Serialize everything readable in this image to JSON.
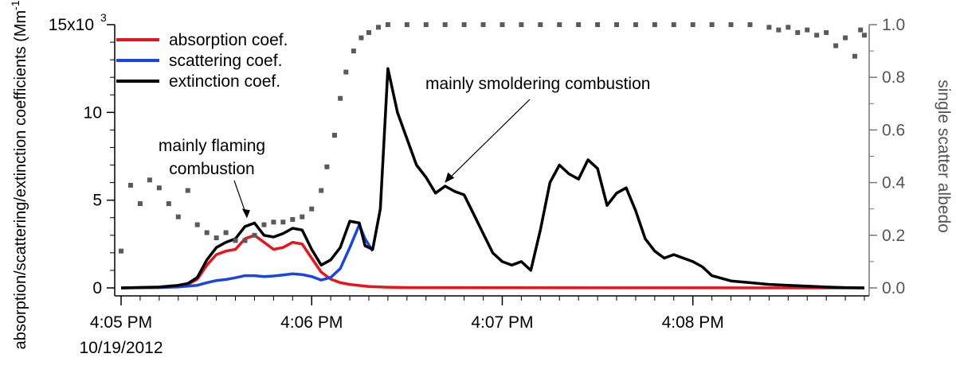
{
  "chart_data": {
    "type": "line",
    "title": "",
    "ylabel": "absorption/scattering/extinction coefficients (Mm",
    "ylabel_sup": "-1",
    "ylabel_end": ")",
    "y2label": "single scatter albedo",
    "x_ticks": [
      {
        "t": 0,
        "label": "4:05 PM"
      },
      {
        "t": 1,
        "label": "4:06 PM"
      },
      {
        "t": 2,
        "label": "4:07 PM"
      },
      {
        "t": 3,
        "label": "4:08 PM"
      }
    ],
    "x_date_label": "10/19/2012",
    "xlim": [
      0,
      3.9
    ],
    "ylim": [
      0,
      15000
    ],
    "y_ticks": [
      {
        "v": 0,
        "label": "0"
      },
      {
        "v": 5000,
        "label": "5"
      },
      {
        "v": 10000,
        "label": "10"
      },
      {
        "v": 15000,
        "label": "15x10"
      }
    ],
    "y_top_sup": "3",
    "y2lim": [
      0,
      1
    ],
    "y2_ticks": [
      {
        "v": 0,
        "label": "0.0"
      },
      {
        "v": 0.2,
        "label": "0.2"
      },
      {
        "v": 0.4,
        "label": "0.4"
      },
      {
        "v": 0.6,
        "label": "0.6"
      },
      {
        "v": 0.8,
        "label": "0.8"
      },
      {
        "v": 1.0,
        "label": "1.0"
      }
    ],
    "legend_position": "top-left",
    "series": [
      {
        "name": "absorption coef.",
        "color": "#e8141c",
        "axis": "left",
        "points": [
          [
            0,
            0
          ],
          [
            0.2,
            30
          ],
          [
            0.3,
            100
          ],
          [
            0.35,
            200
          ],
          [
            0.4,
            500
          ],
          [
            0.45,
            1300
          ],
          [
            0.5,
            1900
          ],
          [
            0.55,
            2100
          ],
          [
            0.6,
            2200
          ],
          [
            0.65,
            2800
          ],
          [
            0.7,
            3000
          ],
          [
            0.75,
            2600
          ],
          [
            0.8,
            2200
          ],
          [
            0.85,
            2300
          ],
          [
            0.9,
            2600
          ],
          [
            0.95,
            2500
          ],
          [
            1.0,
            1700
          ],
          [
            1.05,
            900
          ],
          [
            1.1,
            500
          ],
          [
            1.15,
            300
          ],
          [
            1.2,
            200
          ],
          [
            1.3,
            80
          ],
          [
            1.4,
            40
          ],
          [
            1.5,
            20
          ],
          [
            2.0,
            10
          ],
          [
            3.0,
            5
          ],
          [
            3.9,
            0
          ]
        ]
      },
      {
        "name": "scattering coef.",
        "color": "#1a46e0",
        "axis": "left",
        "points": [
          [
            0,
            0
          ],
          [
            0.2,
            20
          ],
          [
            0.3,
            60
          ],
          [
            0.4,
            150
          ],
          [
            0.45,
            300
          ],
          [
            0.5,
            420
          ],
          [
            0.55,
            480
          ],
          [
            0.6,
            580
          ],
          [
            0.65,
            700
          ],
          [
            0.7,
            700
          ],
          [
            0.75,
            650
          ],
          [
            0.8,
            680
          ],
          [
            0.85,
            740
          ],
          [
            0.9,
            800
          ],
          [
            0.95,
            760
          ],
          [
            1.0,
            650
          ],
          [
            1.05,
            450
          ],
          [
            1.1,
            600
          ],
          [
            1.15,
            1100
          ],
          [
            1.2,
            2300
          ],
          [
            1.25,
            3600
          ],
          [
            1.28,
            2800
          ],
          [
            1.32,
            2100
          ]
        ]
      },
      {
        "name": "extinction coef.",
        "color": "#000000",
        "axis": "left",
        "points": [
          [
            0,
            0
          ],
          [
            0.2,
            50
          ],
          [
            0.3,
            150
          ],
          [
            0.35,
            250
          ],
          [
            0.4,
            600
          ],
          [
            0.45,
            1600
          ],
          [
            0.5,
            2300
          ],
          [
            0.55,
            2600
          ],
          [
            0.6,
            2800
          ],
          [
            0.65,
            3500
          ],
          [
            0.7,
            3700
          ],
          [
            0.75,
            3000
          ],
          [
            0.8,
            2900
          ],
          [
            0.85,
            3100
          ],
          [
            0.9,
            3400
          ],
          [
            0.95,
            3300
          ],
          [
            1.0,
            2200
          ],
          [
            1.05,
            1300
          ],
          [
            1.1,
            1600
          ],
          [
            1.15,
            2300
          ],
          [
            1.2,
            3800
          ],
          [
            1.25,
            3700
          ],
          [
            1.28,
            2400
          ],
          [
            1.32,
            2200
          ],
          [
            1.36,
            4500
          ],
          [
            1.4,
            12500
          ],
          [
            1.45,
            10000
          ],
          [
            1.5,
            8500
          ],
          [
            1.55,
            7000
          ],
          [
            1.6,
            6300
          ],
          [
            1.65,
            5400
          ],
          [
            1.7,
            5800
          ],
          [
            1.75,
            5500
          ],
          [
            1.8,
            5300
          ],
          [
            1.85,
            4200
          ],
          [
            1.9,
            3100
          ],
          [
            1.95,
            2000
          ],
          [
            2.0,
            1500
          ],
          [
            2.05,
            1300
          ],
          [
            2.1,
            1500
          ],
          [
            2.15,
            1000
          ],
          [
            2.2,
            3300
          ],
          [
            2.25,
            6000
          ],
          [
            2.3,
            7000
          ],
          [
            2.35,
            6500
          ],
          [
            2.4,
            6200
          ],
          [
            2.45,
            7300
          ],
          [
            2.5,
            6800
          ],
          [
            2.55,
            4700
          ],
          [
            2.6,
            5400
          ],
          [
            2.65,
            5700
          ],
          [
            2.7,
            4400
          ],
          [
            2.75,
            2800
          ],
          [
            2.8,
            2100
          ],
          [
            2.85,
            1700
          ],
          [
            2.9,
            1900
          ],
          [
            2.95,
            1700
          ],
          [
            3.0,
            1500
          ],
          [
            3.05,
            1200
          ],
          [
            3.1,
            700
          ],
          [
            3.2,
            400
          ],
          [
            3.3,
            300
          ],
          [
            3.4,
            200
          ],
          [
            3.5,
            150
          ],
          [
            3.6,
            100
          ],
          [
            3.7,
            50
          ],
          [
            3.8,
            20
          ],
          [
            3.9,
            0
          ]
        ]
      },
      {
        "name": "single scatter albedo",
        "color": "#5a5a5a",
        "axis": "right",
        "style": "markers",
        "points": [
          [
            0.0,
            0.14
          ],
          [
            0.05,
            0.39
          ],
          [
            0.1,
            0.32
          ],
          [
            0.15,
            0.41
          ],
          [
            0.2,
            0.38
          ],
          [
            0.25,
            0.32
          ],
          [
            0.3,
            0.27
          ],
          [
            0.35,
            0.37
          ],
          [
            0.4,
            0.24
          ],
          [
            0.45,
            0.21
          ],
          [
            0.5,
            0.19
          ],
          [
            0.55,
            0.21
          ],
          [
            0.6,
            0.18
          ],
          [
            0.65,
            0.18
          ],
          [
            0.7,
            0.2
          ],
          [
            0.75,
            0.24
          ],
          [
            0.8,
            0.25
          ],
          [
            0.85,
            0.25
          ],
          [
            0.9,
            0.26
          ],
          [
            0.95,
            0.27
          ],
          [
            1.0,
            0.3
          ],
          [
            1.05,
            0.37
          ],
          [
            1.08,
            0.46
          ],
          [
            1.12,
            0.58
          ],
          [
            1.15,
            0.72
          ],
          [
            1.18,
            0.82
          ],
          [
            1.22,
            0.9
          ],
          [
            1.26,
            0.95
          ],
          [
            1.3,
            0.97
          ],
          [
            1.35,
            0.99
          ],
          [
            1.4,
            1.0
          ],
          [
            1.5,
            1.0
          ],
          [
            1.6,
            1.0
          ],
          [
            1.7,
            1.0
          ],
          [
            1.8,
            1.0
          ],
          [
            1.9,
            1.0
          ],
          [
            2.0,
            1.0
          ],
          [
            2.1,
            1.0
          ],
          [
            2.2,
            1.0
          ],
          [
            2.3,
            1.0
          ],
          [
            2.4,
            1.0
          ],
          [
            2.5,
            1.0
          ],
          [
            2.6,
            1.0
          ],
          [
            2.7,
            1.0
          ],
          [
            2.8,
            1.0
          ],
          [
            2.9,
            1.0
          ],
          [
            3.0,
            1.0
          ],
          [
            3.1,
            1.0
          ],
          [
            3.2,
            1.0
          ],
          [
            3.3,
            1.0
          ],
          [
            3.4,
            0.99
          ],
          [
            3.45,
            0.98
          ],
          [
            3.5,
            0.99
          ],
          [
            3.55,
            0.97
          ],
          [
            3.6,
            0.98
          ],
          [
            3.65,
            0.96
          ],
          [
            3.7,
            0.97
          ],
          [
            3.75,
            0.92
          ],
          [
            3.8,
            0.95
          ],
          [
            3.85,
            0.88
          ],
          [
            3.88,
            0.98
          ],
          [
            3.9,
            0.96
          ]
        ]
      }
    ],
    "annotations": [
      {
        "id": "flaming",
        "lines": [
          "mainly flaming",
          "combustion"
        ],
        "point": [
          0.66,
          3700
        ]
      },
      {
        "id": "smoldering",
        "lines": [
          "mainly smoldering combustion"
        ],
        "point": [
          1.69,
          5900
        ]
      }
    ]
  }
}
